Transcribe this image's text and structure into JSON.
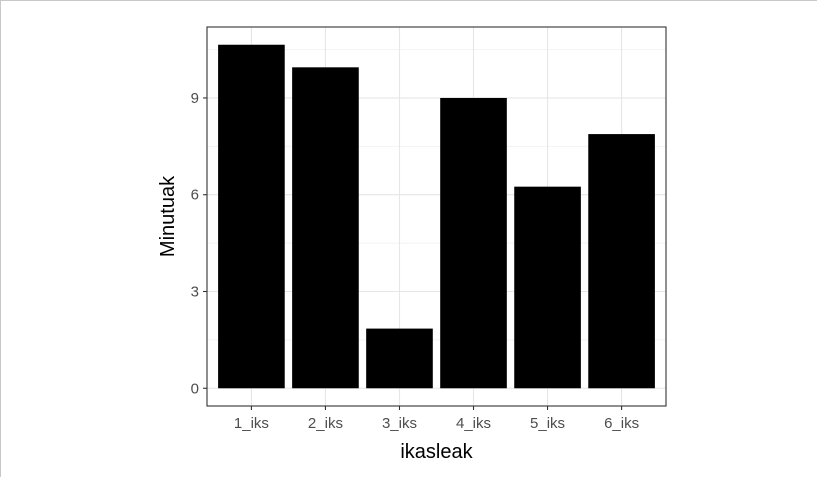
{
  "chart_data": {
    "type": "bar",
    "categories": [
      "1_iks",
      "2_iks",
      "3_iks",
      "4_iks",
      "5_iks",
      "6_iks"
    ],
    "values": [
      10.65,
      9.95,
      1.85,
      9.0,
      6.25,
      7.88
    ],
    "xlabel": "ikasleak",
    "ylabel": "Minutuak",
    "ylim": [
      -0.55,
      11.2
    ],
    "yticks": [
      0,
      3,
      6,
      9
    ],
    "ytick_labels": [
      "0",
      "3",
      "6",
      "9"
    ],
    "grid": true,
    "colors": {
      "bar": "#000000",
      "grid_major": "#e6e6e6",
      "grid_minor": "#f2f2f2",
      "panel_border": "#333333"
    }
  }
}
